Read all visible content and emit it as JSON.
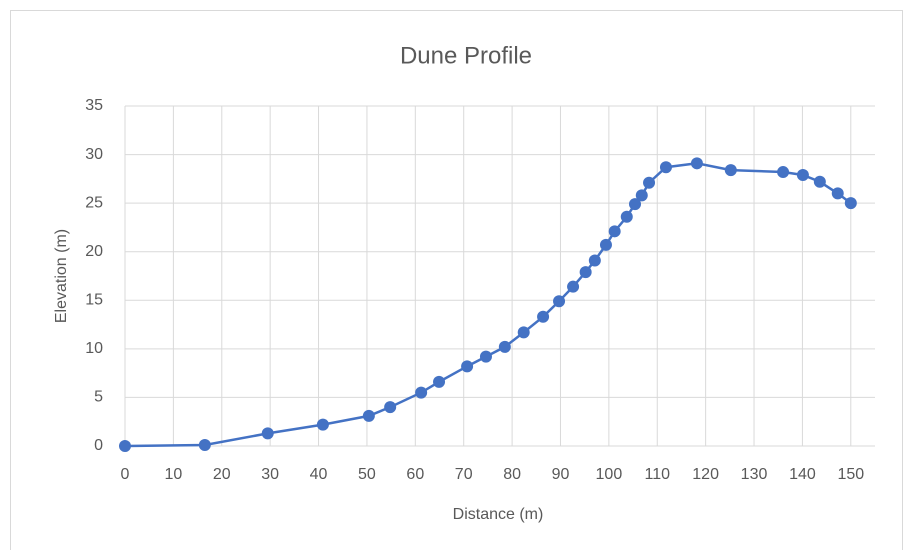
{
  "chart_data": {
    "type": "line",
    "title": "Dune Profile",
    "x_label": "Distance (m)",
    "y_label": "Elevation (m)",
    "x": [
      0,
      16.5,
      29.5,
      40.9,
      50.4,
      54.8,
      61.2,
      64.9,
      70.7,
      74.6,
      78.5,
      82.4,
      86.4,
      89.7,
      92.6,
      95.2,
      97.1,
      99.4,
      101.2,
      103.7,
      105.4,
      106.8,
      108.3,
      111.8,
      118.2,
      125.2,
      136,
      140.1,
      143.6,
      147.3,
      150
    ],
    "values": [
      0,
      0.1,
      1.3,
      2.2,
      3.1,
      4.0,
      5.5,
      6.6,
      8.2,
      9.2,
      10.2,
      11.7,
      13.3,
      14.9,
      16.4,
      17.9,
      19.1,
      20.7,
      22.1,
      23.6,
      24.9,
      25.8,
      27.1,
      28.7,
      29.1,
      28.4,
      28.2,
      27.9,
      27.2,
      26.0,
      25.0
    ],
    "color": "#4472c4",
    "markers": true,
    "xlim": [
      0,
      155
    ],
    "xticks": [
      0,
      10,
      20,
      30,
      40,
      50,
      60,
      70,
      80,
      90,
      100,
      110,
      120,
      130,
      140,
      150
    ],
    "ylim": [
      0,
      35
    ],
    "yticks": [
      0,
      5,
      10,
      15,
      20,
      25,
      30,
      35
    ],
    "grid": true
  }
}
